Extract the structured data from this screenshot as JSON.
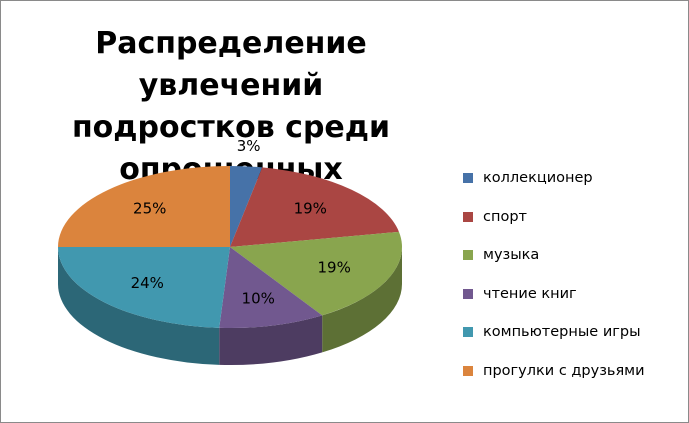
{
  "chart_data": {
    "type": "pie",
    "title_lines": [
      "Распределение увлечений",
      "подростков среди опрошенных"
    ],
    "categories": [
      "коллекционер",
      "спорт",
      "музыка",
      "чтение книг",
      "компьютерные игры",
      "прогулки с друзьями"
    ],
    "values": [
      3,
      19,
      19,
      10,
      24,
      25
    ],
    "labels": [
      "3%",
      "19%",
      "19%",
      "10%",
      "24%",
      "25%"
    ],
    "colors": [
      "#4672A8",
      "#AA4643",
      "#89A54E",
      "#71588F",
      "#4198AF",
      "#DB843D"
    ],
    "style": "3d",
    "legend_position": "right"
  }
}
